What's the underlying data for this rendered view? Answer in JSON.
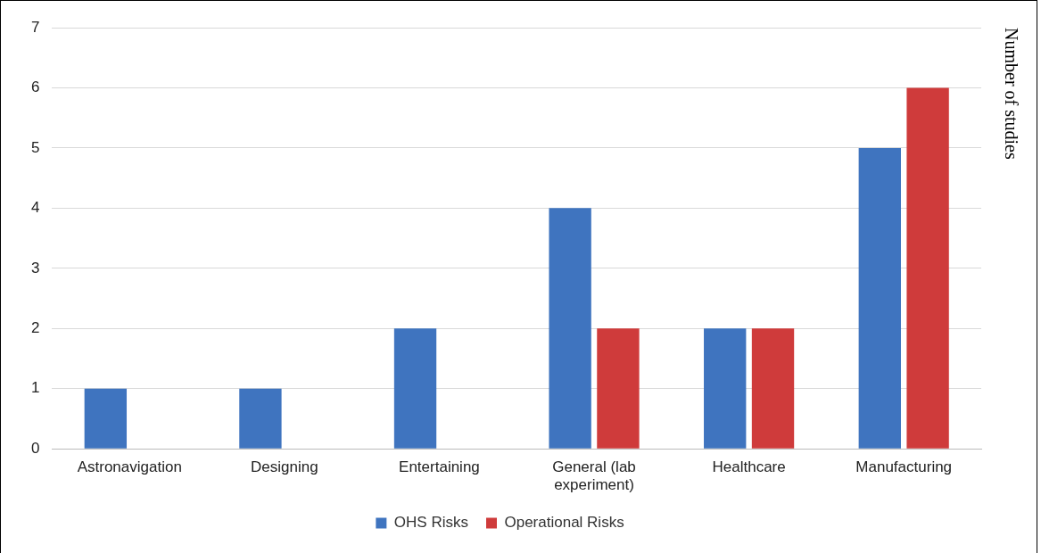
{
  "chart_data": {
    "type": "bar",
    "ylabel": "Number of studies",
    "categories": [
      "Astronavigation",
      "Designing",
      "Entertaining",
      "General (lab experiment)",
      "Healthcare",
      "Manufacturing"
    ],
    "series": [
      {
        "name": "OHS Risks",
        "color": "#3f74bf",
        "values": [
          1,
          1,
          2,
          4,
          2,
          5
        ]
      },
      {
        "name": "Operational Risks",
        "color": "#cf3b3b",
        "values": [
          null,
          null,
          null,
          2,
          2,
          6
        ]
      }
    ],
    "ylim": [
      0,
      7
    ],
    "yticks": [
      0,
      1,
      2,
      3,
      4,
      5,
      6,
      7
    ],
    "grid": "y",
    "legend": "bottom"
  }
}
